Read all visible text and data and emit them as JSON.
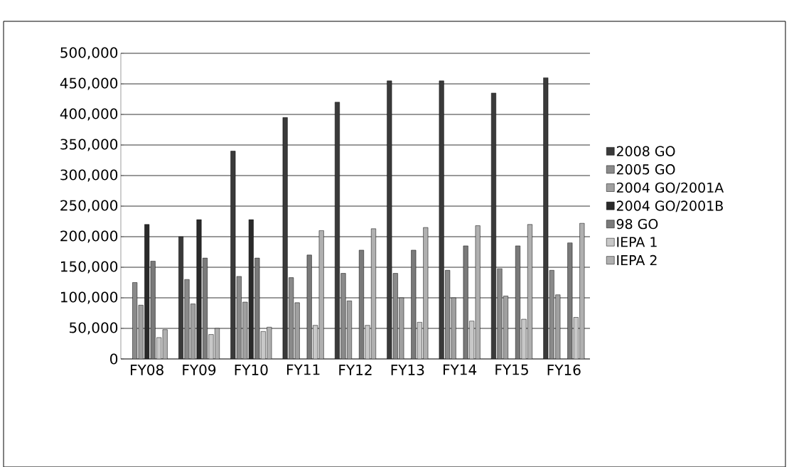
{
  "chart_data": {
    "type": "bar",
    "categories": [
      "FY08",
      "FY09",
      "FY10",
      "FY11",
      "FY12",
      "FY13",
      "FY14",
      "FY15",
      "FY16"
    ],
    "series": [
      {
        "name": "2008 GO",
        "color": "#3a3a3a",
        "values": [
          null,
          200000,
          340000,
          395000,
          420000,
          455000,
          455000,
          435000,
          460000
        ]
      },
      {
        "name": "2005 GO",
        "color": "#8a8a8a",
        "values": [
          125000,
          130000,
          135000,
          133000,
          140000,
          140000,
          145000,
          148000,
          145000
        ]
      },
      {
        "name": "2004 GO/2001A",
        "color": "#a0a0a0",
        "values": [
          88000,
          90000,
          93000,
          92000,
          95000,
          100000,
          100000,
          103000,
          105000
        ]
      },
      {
        "name": "2004 GO/2001B",
        "color": "#2a2a2a",
        "values": [
          220000,
          228000,
          228000,
          null,
          null,
          null,
          null,
          null,
          null
        ]
      },
      {
        "name": "98 GO",
        "color": "#7a7a7a",
        "values": [
          160000,
          165000,
          165000,
          170000,
          178000,
          178000,
          185000,
          185000,
          190000
        ]
      },
      {
        "name": "IEPA 1",
        "color": "#c8c8c8",
        "values": [
          35000,
          40000,
          45000,
          55000,
          55000,
          60000,
          62000,
          65000,
          68000
        ]
      },
      {
        "name": "IEPA 2",
        "color": "#b0b0b0",
        "values": [
          48000,
          50000,
          52000,
          210000,
          213000,
          215000,
          218000,
          220000,
          222000
        ]
      }
    ],
    "ylim": [
      0,
      500000
    ],
    "yticks": [
      {
        "value": 0,
        "label": "0"
      },
      {
        "value": 50000,
        "label": "50,000"
      },
      {
        "value": 100000,
        "label": "100,000"
      },
      {
        "value": 150000,
        "label": "150,000"
      },
      {
        "value": 200000,
        "label": "200,000"
      },
      {
        "value": 250000,
        "label": "250,000"
      },
      {
        "value": 300000,
        "label": "300,000"
      },
      {
        "value": 350000,
        "label": "350,000"
      },
      {
        "value": 400000,
        "label": "400,000"
      },
      {
        "value": 450000,
        "label": "450,000"
      },
      {
        "value": 500000,
        "label": "500,000"
      }
    ],
    "grid": "y",
    "legend": "right"
  }
}
